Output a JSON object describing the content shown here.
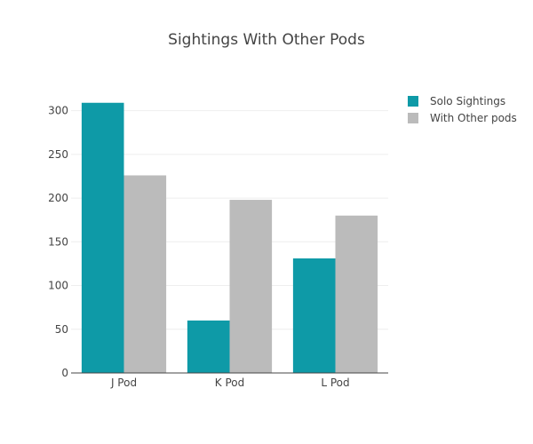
{
  "chart_data": {
    "type": "bar",
    "title": "Sightings With Other Pods",
    "xlabel": "",
    "ylabel": "",
    "categories": [
      "J Pod",
      "K Pod",
      "L Pod"
    ],
    "series": [
      {
        "name": "Solo Sightings",
        "values": [
          309,
          60,
          131
        ],
        "color": "#0e9aa7"
      },
      {
        "name": "With Other pods",
        "values": [
          226,
          198,
          180
        ],
        "color": "#bbbbbb"
      }
    ],
    "ylim": [
      0,
      325
    ],
    "yticks": [
      0,
      50,
      100,
      150,
      200,
      250,
      300
    ],
    "grid": true,
    "legend_position": "top-right"
  }
}
